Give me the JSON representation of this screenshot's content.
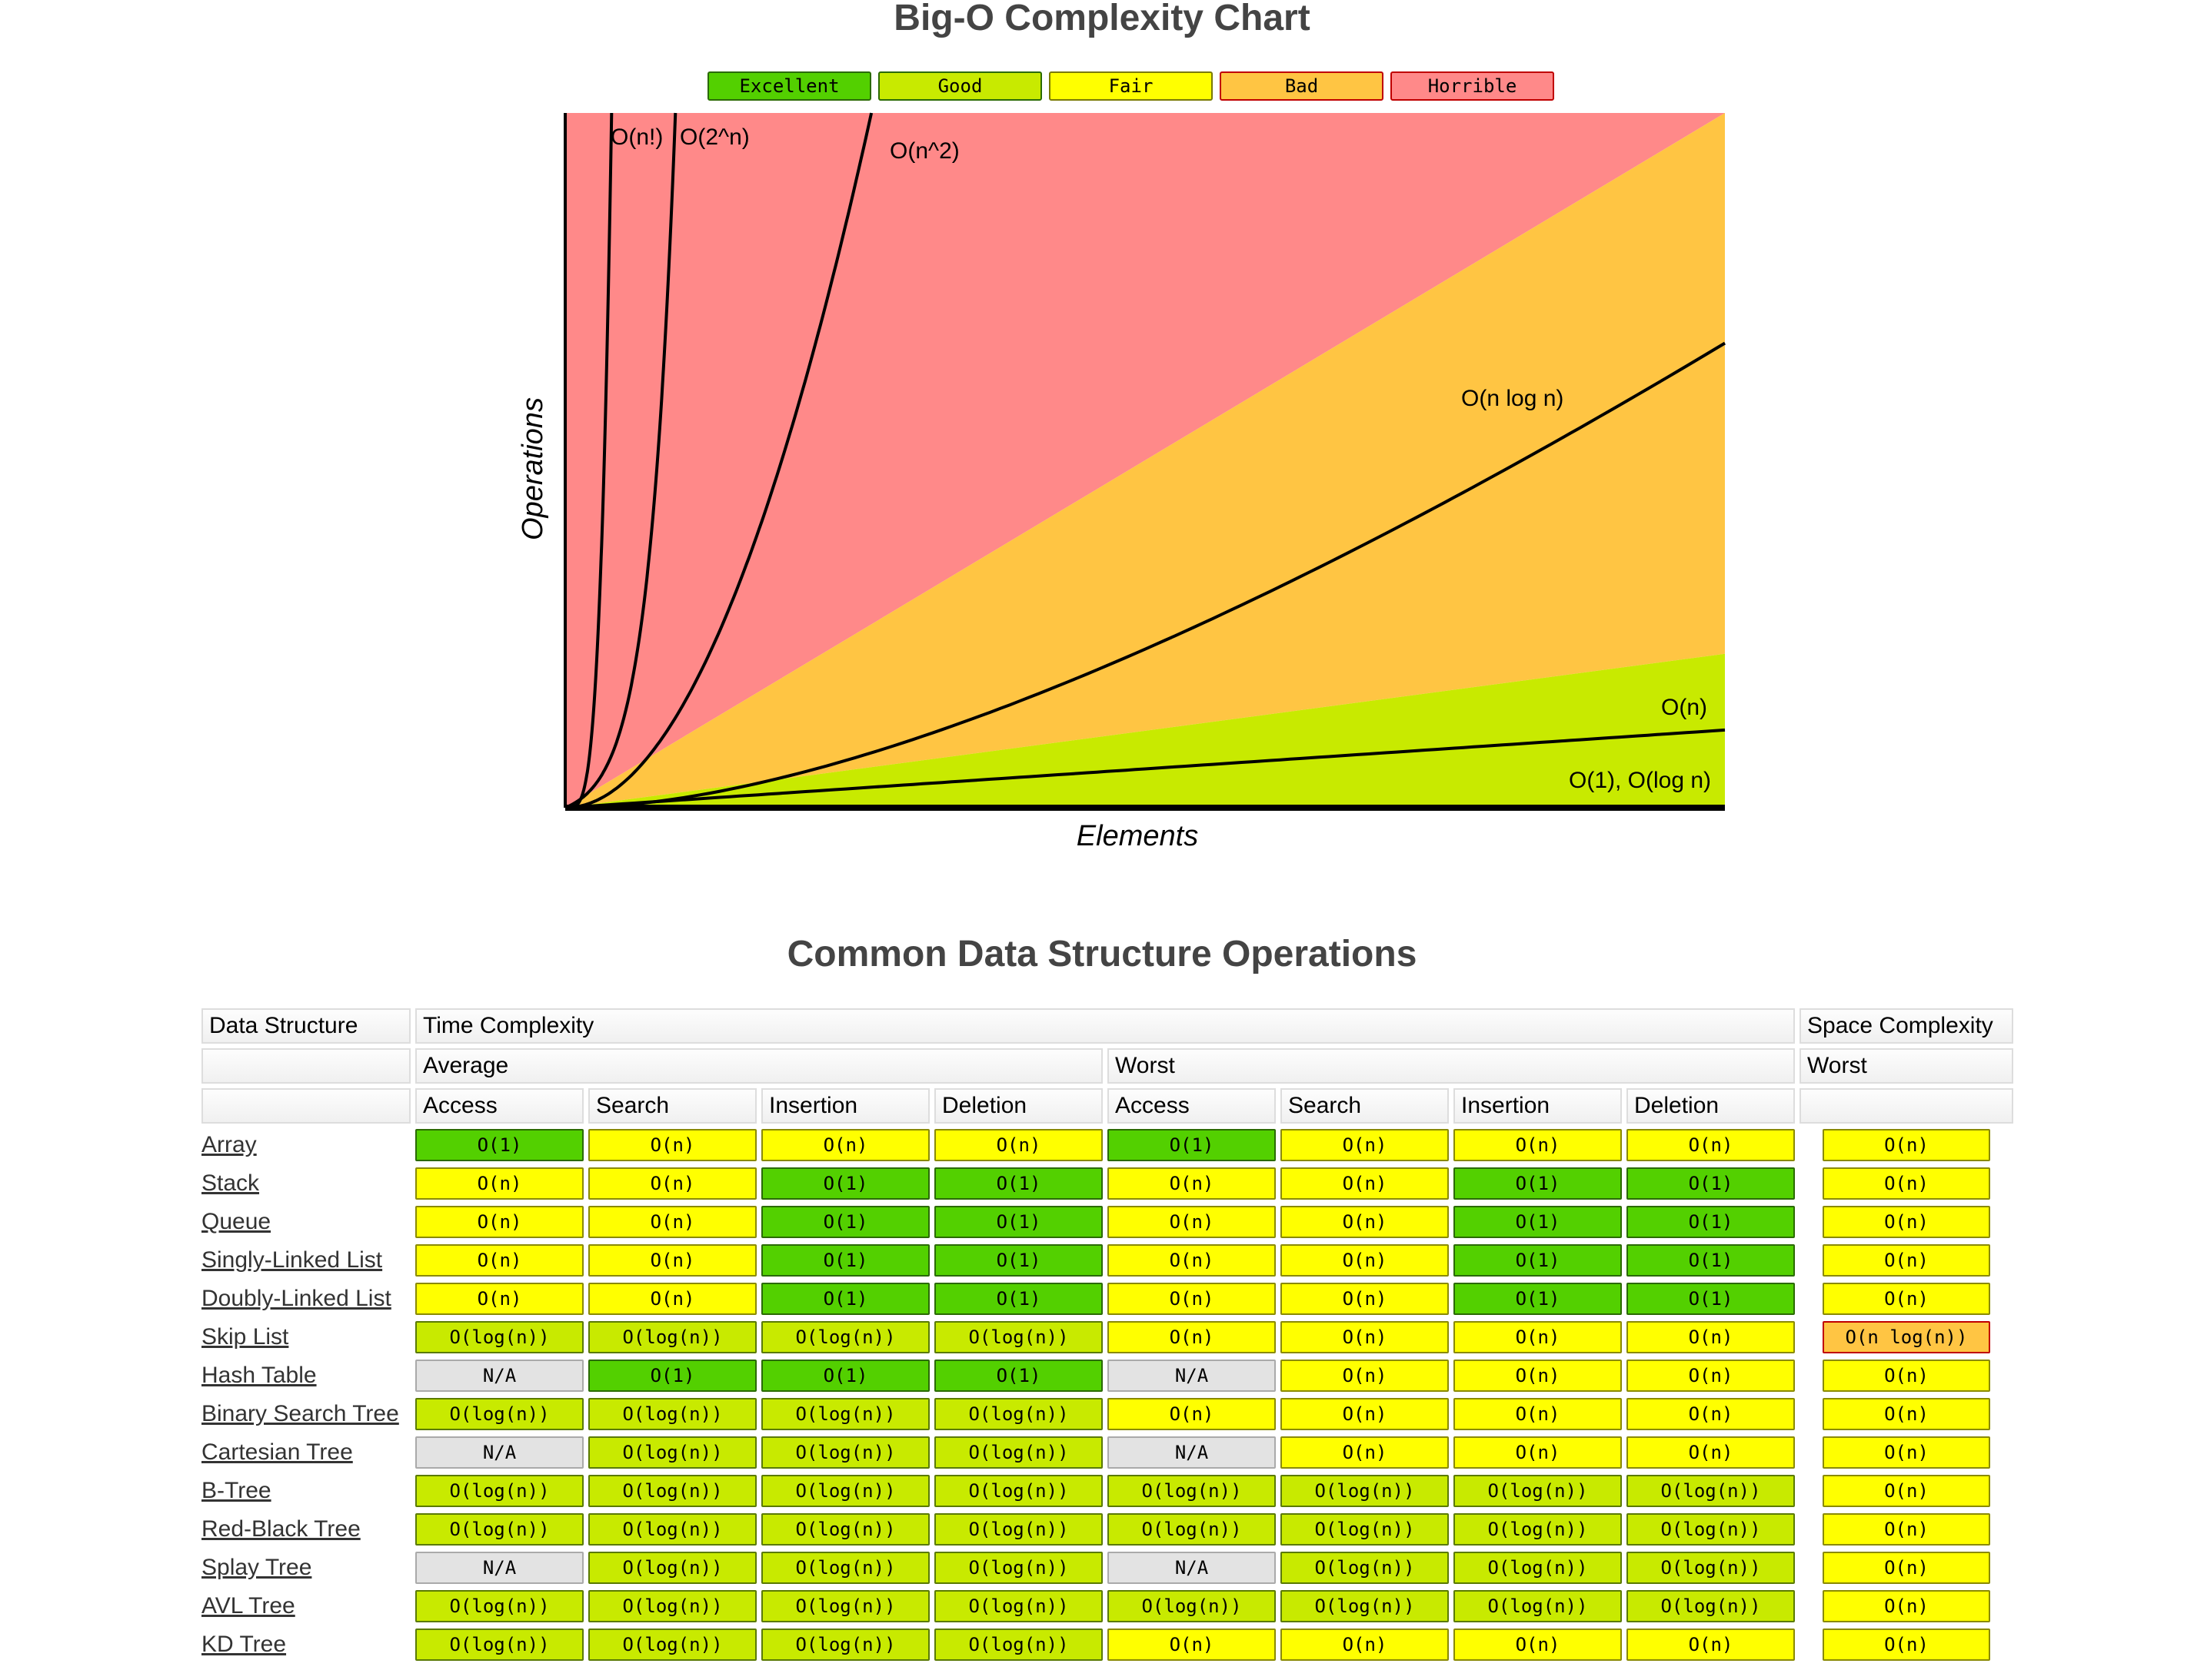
{
  "chart": {
    "title": "Big-O Complexity Chart",
    "legend": [
      {
        "label": "Excellent",
        "color": "#53d000",
        "border": "#2a6a00"
      },
      {
        "label": "Good",
        "color": "#c8ea00",
        "border": "#2a6a00"
      },
      {
        "label": "Fair",
        "color": "#ffff00",
        "border": "#7a7a00"
      },
      {
        "label": "Bad",
        "color": "#ffc543",
        "border": "#c00000"
      },
      {
        "label": "Horrible",
        "color": "#ff8989",
        "border": "#c00000"
      }
    ],
    "xlabel": "Elements",
    "ylabel": "Operations",
    "curves": {
      "factorial": "O(n!)",
      "exponential": "O(2^n)",
      "quadratic": "O(n^2)",
      "nlogn": "O(n log n)",
      "linear": "O(n)",
      "constant_log": "O(1), O(log n)"
    }
  },
  "table": {
    "title": "Common Data Structure Operations",
    "headers": {
      "data_structure": "Data Structure",
      "time_complexity": "Time Complexity",
      "space_complexity": "Space Complexity",
      "average": "Average",
      "worst": "Worst",
      "space_worst": "Worst",
      "ops": [
        "Access",
        "Search",
        "Insertion",
        "Deletion",
        "Access",
        "Search",
        "Insertion",
        "Deletion"
      ]
    },
    "ratings": {
      "O(1)": "excellent",
      "O(log(n))": "good",
      "O(n)": "fair",
      "O(n log(n))": "bad",
      "N/A": "na"
    },
    "rating_colors": {
      "excellent": [
        "#53d000",
        "#2a6a00"
      ],
      "good": [
        "#c8ea00",
        "#5a7a00"
      ],
      "fair": [
        "#ffff00",
        "#8a8a00"
      ],
      "bad": [
        "#ffc543",
        "#c00000"
      ],
      "na": [
        "#e3e3e3",
        "#aaaaaa"
      ]
    },
    "rows": [
      {
        "name": "Array",
        "time": [
          "O(1)",
          "O(n)",
          "O(n)",
          "O(n)",
          "O(1)",
          "O(n)",
          "O(n)",
          "O(n)"
        ],
        "space": "O(n)"
      },
      {
        "name": "Stack",
        "time": [
          "O(n)",
          "O(n)",
          "O(1)",
          "O(1)",
          "O(n)",
          "O(n)",
          "O(1)",
          "O(1)"
        ],
        "space": "O(n)"
      },
      {
        "name": "Queue",
        "time": [
          "O(n)",
          "O(n)",
          "O(1)",
          "O(1)",
          "O(n)",
          "O(n)",
          "O(1)",
          "O(1)"
        ],
        "space": "O(n)"
      },
      {
        "name": "Singly-Linked List",
        "time": [
          "O(n)",
          "O(n)",
          "O(1)",
          "O(1)",
          "O(n)",
          "O(n)",
          "O(1)",
          "O(1)"
        ],
        "space": "O(n)"
      },
      {
        "name": "Doubly-Linked List",
        "time": [
          "O(n)",
          "O(n)",
          "O(1)",
          "O(1)",
          "O(n)",
          "O(n)",
          "O(1)",
          "O(1)"
        ],
        "space": "O(n)"
      },
      {
        "name": "Skip List",
        "time": [
          "O(log(n))",
          "O(log(n))",
          "O(log(n))",
          "O(log(n))",
          "O(n)",
          "O(n)",
          "O(n)",
          "O(n)"
        ],
        "space": "O(n log(n))"
      },
      {
        "name": "Hash Table",
        "time": [
          "N/A",
          "O(1)",
          "O(1)",
          "O(1)",
          "N/A",
          "O(n)",
          "O(n)",
          "O(n)"
        ],
        "space": "O(n)"
      },
      {
        "name": "Binary Search Tree",
        "time": [
          "O(log(n))",
          "O(log(n))",
          "O(log(n))",
          "O(log(n))",
          "O(n)",
          "O(n)",
          "O(n)",
          "O(n)"
        ],
        "space": "O(n)"
      },
      {
        "name": "Cartesian Tree",
        "time": [
          "N/A",
          "O(log(n))",
          "O(log(n))",
          "O(log(n))",
          "N/A",
          "O(n)",
          "O(n)",
          "O(n)"
        ],
        "space": "O(n)"
      },
      {
        "name": "B-Tree",
        "time": [
          "O(log(n))",
          "O(log(n))",
          "O(log(n))",
          "O(log(n))",
          "O(log(n))",
          "O(log(n))",
          "O(log(n))",
          "O(log(n))"
        ],
        "space": "O(n)"
      },
      {
        "name": "Red-Black Tree",
        "time": [
          "O(log(n))",
          "O(log(n))",
          "O(log(n))",
          "O(log(n))",
          "O(log(n))",
          "O(log(n))",
          "O(log(n))",
          "O(log(n))"
        ],
        "space": "O(n)"
      },
      {
        "name": "Splay Tree",
        "time": [
          "N/A",
          "O(log(n))",
          "O(log(n))",
          "O(log(n))",
          "N/A",
          "O(log(n))",
          "O(log(n))",
          "O(log(n))"
        ],
        "space": "O(n)"
      },
      {
        "name": "AVL Tree",
        "time": [
          "O(log(n))",
          "O(log(n))",
          "O(log(n))",
          "O(log(n))",
          "O(log(n))",
          "O(log(n))",
          "O(log(n))",
          "O(log(n))"
        ],
        "space": "O(n)"
      },
      {
        "name": "KD Tree",
        "time": [
          "O(log(n))",
          "O(log(n))",
          "O(log(n))",
          "O(log(n))",
          "O(n)",
          "O(n)",
          "O(n)",
          "O(n)"
        ],
        "space": "O(n)"
      }
    ]
  }
}
